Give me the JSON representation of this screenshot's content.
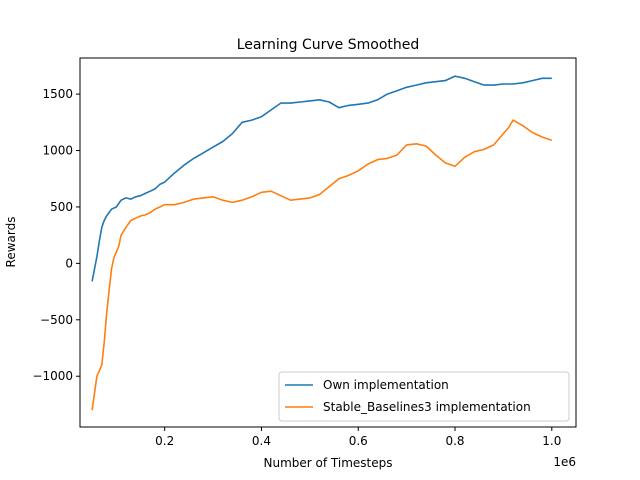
{
  "chart_data": {
    "type": "line",
    "title": "Learning Curve Smoothed",
    "xlabel": "Number of Timesteps",
    "ylabel": "Rewards",
    "x_offset_label": "1e6",
    "xlim": [
      0.025,
      1.05
    ],
    "ylim": [
      -1450,
      1820
    ],
    "x_ticks": [
      0.2,
      0.4,
      0.6,
      0.8,
      1.0
    ],
    "x_tick_labels": [
      "0.2",
      "0.4",
      "0.6",
      "0.8",
      "1.0"
    ],
    "y_ticks": [
      -1000,
      -500,
      0,
      500,
      1000,
      1500
    ],
    "y_tick_labels": [
      "−1000",
      "−500",
      "0",
      "500",
      "1000",
      "1500"
    ],
    "grid": false,
    "legend_position": "lower-right",
    "series": [
      {
        "name": "Own implementation",
        "color": "#1f77b4",
        "x": [
          0.05,
          0.055,
          0.06,
          0.065,
          0.07,
          0.075,
          0.08,
          0.09,
          0.1,
          0.11,
          0.12,
          0.13,
          0.14,
          0.15,
          0.16,
          0.17,
          0.18,
          0.19,
          0.2,
          0.22,
          0.24,
          0.26,
          0.28,
          0.3,
          0.32,
          0.34,
          0.36,
          0.38,
          0.4,
          0.42,
          0.44,
          0.46,
          0.48,
          0.5,
          0.52,
          0.54,
          0.56,
          0.58,
          0.6,
          0.62,
          0.64,
          0.66,
          0.68,
          0.7,
          0.72,
          0.74,
          0.76,
          0.78,
          0.8,
          0.82,
          0.84,
          0.86,
          0.88,
          0.9,
          0.92,
          0.94,
          0.96,
          0.98,
          1.0
        ],
        "y": [
          -160,
          -50,
          60,
          200,
          320,
          380,
          420,
          480,
          500,
          560,
          580,
          570,
          590,
          600,
          620,
          640,
          660,
          700,
          720,
          800,
          870,
          930,
          980,
          1030,
          1080,
          1150,
          1250,
          1270,
          1300,
          1360,
          1420,
          1420,
          1430,
          1440,
          1450,
          1430,
          1380,
          1400,
          1410,
          1420,
          1450,
          1500,
          1530,
          1560,
          1580,
          1600,
          1610,
          1620,
          1660,
          1640,
          1610,
          1580,
          1580,
          1590,
          1590,
          1600,
          1620,
          1640,
          1640
        ]
      },
      {
        "name": "Stable_Baselines3 implementation",
        "color": "#ff7f0e",
        "x": [
          0.05,
          0.055,
          0.06,
          0.065,
          0.07,
          0.075,
          0.08,
          0.085,
          0.09,
          0.095,
          0.1,
          0.105,
          0.11,
          0.12,
          0.13,
          0.14,
          0.15,
          0.16,
          0.17,
          0.18,
          0.19,
          0.2,
          0.22,
          0.24,
          0.26,
          0.28,
          0.3,
          0.32,
          0.34,
          0.36,
          0.38,
          0.4,
          0.42,
          0.44,
          0.46,
          0.48,
          0.5,
          0.52,
          0.54,
          0.56,
          0.58,
          0.6,
          0.62,
          0.64,
          0.66,
          0.68,
          0.7,
          0.72,
          0.74,
          0.76,
          0.78,
          0.8,
          0.82,
          0.84,
          0.86,
          0.88,
          0.9,
          0.91,
          0.92,
          0.94,
          0.96,
          0.98,
          1.0
        ],
        "y": [
          -1300,
          -1150,
          -1000,
          -950,
          -900,
          -700,
          -450,
          -250,
          -50,
          50,
          100,
          150,
          250,
          320,
          380,
          400,
          420,
          430,
          450,
          480,
          500,
          520,
          520,
          540,
          570,
          580,
          590,
          560,
          540,
          560,
          590,
          630,
          640,
          600,
          560,
          570,
          580,
          610,
          680,
          750,
          780,
          820,
          880,
          920,
          930,
          960,
          1050,
          1060,
          1040,
          960,
          890,
          860,
          940,
          990,
          1010,
          1050,
          1150,
          1200,
          1270,
          1220,
          1160,
          1120,
          1090
        ]
      }
    ]
  }
}
